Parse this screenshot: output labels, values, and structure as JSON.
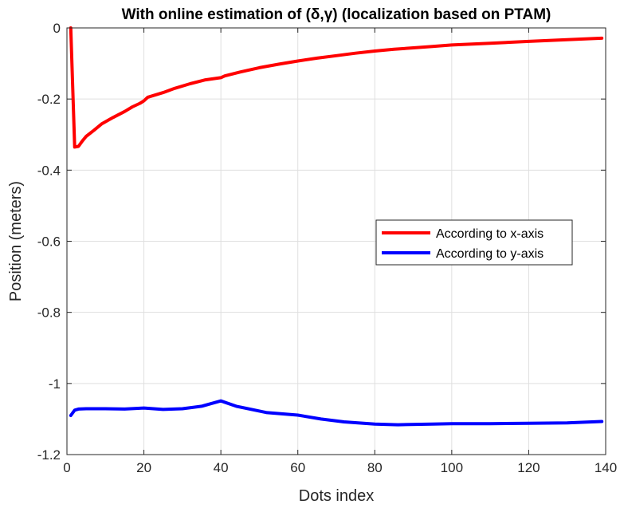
{
  "chart_data": {
    "type": "line",
    "title": "With online estimation of (δ,γ) (localization based on PTAM)",
    "xlabel": "Dots index",
    "ylabel": "Position (meters)",
    "xlim": [
      0,
      140
    ],
    "ylim": [
      -1.2,
      0
    ],
    "xticks": [
      0,
      20,
      40,
      60,
      80,
      100,
      120,
      140
    ],
    "yticks": [
      0,
      -0.2,
      -0.4,
      -0.6,
      -0.8,
      -1,
      -1.2
    ],
    "xtick_labels": [
      "0",
      "20",
      "40",
      "60",
      "80",
      "100",
      "120",
      "140"
    ],
    "ytick_labels": [
      "0",
      "-0.2",
      "-0.4",
      "-0.6",
      "-0.8",
      "-1",
      "-1.2"
    ],
    "grid": true,
    "legend_position": "center-right",
    "series": [
      {
        "name": "According to x-axis",
        "color": "#ff0000",
        "x": [
          1,
          2,
          3,
          4,
          5,
          7,
          9,
          12,
          15,
          17,
          19,
          20,
          21,
          25,
          28,
          32,
          36,
          40,
          41,
          45,
          50,
          55,
          60,
          65,
          70,
          75,
          80,
          85,
          90,
          95,
          100,
          110,
          120,
          130,
          139
        ],
        "values": [
          0,
          -0.335,
          -0.333,
          -0.318,
          -0.305,
          -0.288,
          -0.27,
          -0.252,
          -0.235,
          -0.222,
          -0.212,
          -0.205,
          -0.195,
          -0.182,
          -0.17,
          -0.157,
          -0.146,
          -0.14,
          -0.135,
          -0.124,
          -0.112,
          -0.102,
          -0.093,
          -0.085,
          -0.078,
          -0.071,
          -0.065,
          -0.06,
          -0.056,
          -0.052,
          -0.048,
          -0.043,
          -0.038,
          -0.033,
          -0.029
        ]
      },
      {
        "name": "According to y-axis",
        "color": "#0000ff",
        "x": [
          1,
          2,
          3,
          5,
          10,
          15,
          20,
          25,
          30,
          35,
          40,
          44,
          52,
          60,
          66,
          72,
          80,
          86,
          95,
          100,
          110,
          120,
          130,
          139
        ],
        "values": [
          -1.09,
          -1.075,
          -1.072,
          -1.071,
          -1.071,
          -1.072,
          -1.069,
          -1.073,
          -1.071,
          -1.064,
          -1.049,
          -1.064,
          -1.082,
          -1.089,
          -1.1,
          -1.108,
          -1.114,
          -1.116,
          -1.114,
          -1.113,
          -1.113,
          -1.112,
          -1.111,
          -1.107
        ]
      }
    ]
  }
}
